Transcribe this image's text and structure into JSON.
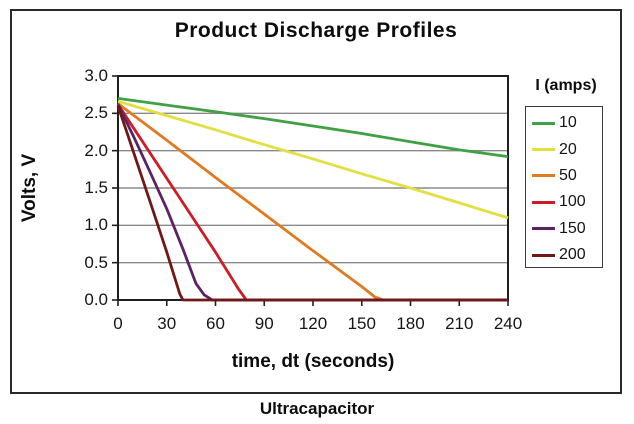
{
  "page": {
    "caption": "Ultracapacitor"
  },
  "chart_data": {
    "type": "line",
    "title": "Product Discharge Profiles",
    "xlabel": "time, dt (seconds)",
    "ylabel": "Volts, V",
    "xlim": [
      0,
      240
    ],
    "ylim": [
      0.0,
      3.0
    ],
    "x_ticks": [
      0,
      30,
      60,
      90,
      120,
      150,
      180,
      210,
      240
    ],
    "y_ticks": [
      "3.0",
      "2.5",
      "2.0",
      "1.5",
      "1.0",
      "0.5",
      "0.0"
    ],
    "grid": true,
    "grid_color": "#8a8a8a",
    "axis_color": "#1f1f1f",
    "legend_position": "right",
    "legend_title": "I (amps)",
    "series": [
      {
        "name": "10",
        "color": "#3fa044",
        "points": [
          [
            0,
            2.7
          ],
          [
            30,
            2.61
          ],
          [
            60,
            2.52
          ],
          [
            90,
            2.43
          ],
          [
            120,
            2.33
          ],
          [
            150,
            2.23
          ],
          [
            180,
            2.12
          ],
          [
            210,
            2.01
          ],
          [
            240,
            1.92
          ]
        ]
      },
      {
        "name": "20",
        "color": "#e2df42",
        "points": [
          [
            0,
            2.66
          ],
          [
            30,
            2.47
          ],
          [
            60,
            2.28
          ],
          [
            90,
            2.08
          ],
          [
            120,
            1.89
          ],
          [
            150,
            1.69
          ],
          [
            180,
            1.5
          ],
          [
            210,
            1.3
          ],
          [
            240,
            1.1
          ]
        ]
      },
      {
        "name": "50",
        "color": "#df7a20",
        "points": [
          [
            0,
            2.63
          ],
          [
            30,
            2.14
          ],
          [
            60,
            1.64
          ],
          [
            90,
            1.15
          ],
          [
            120,
            0.66
          ],
          [
            150,
            0.18
          ],
          [
            158,
            0.04
          ],
          [
            163,
            0
          ],
          [
            240,
            0
          ]
        ]
      },
      {
        "name": "100",
        "color": "#ce1c24",
        "points": [
          [
            0,
            2.62
          ],
          [
            20,
            1.96
          ],
          [
            40,
            1.3
          ],
          [
            60,
            0.64
          ],
          [
            74,
            0.15
          ],
          [
            79,
            0
          ],
          [
            240,
            0
          ]
        ]
      },
      {
        "name": "150",
        "color": "#5c2166",
        "points": [
          [
            0,
            2.62
          ],
          [
            10,
            2.17
          ],
          [
            20,
            1.7
          ],
          [
            30,
            1.22
          ],
          [
            40,
            0.68
          ],
          [
            48,
            0.22
          ],
          [
            53,
            0.07
          ],
          [
            58,
            0
          ],
          [
            240,
            0
          ]
        ]
      },
      {
        "name": "200",
        "color": "#701717",
        "points": [
          [
            0,
            2.6
          ],
          [
            10,
            1.95
          ],
          [
            20,
            1.3
          ],
          [
            30,
            0.64
          ],
          [
            38,
            0.08
          ],
          [
            40,
            0
          ],
          [
            240,
            0
          ]
        ]
      }
    ]
  }
}
